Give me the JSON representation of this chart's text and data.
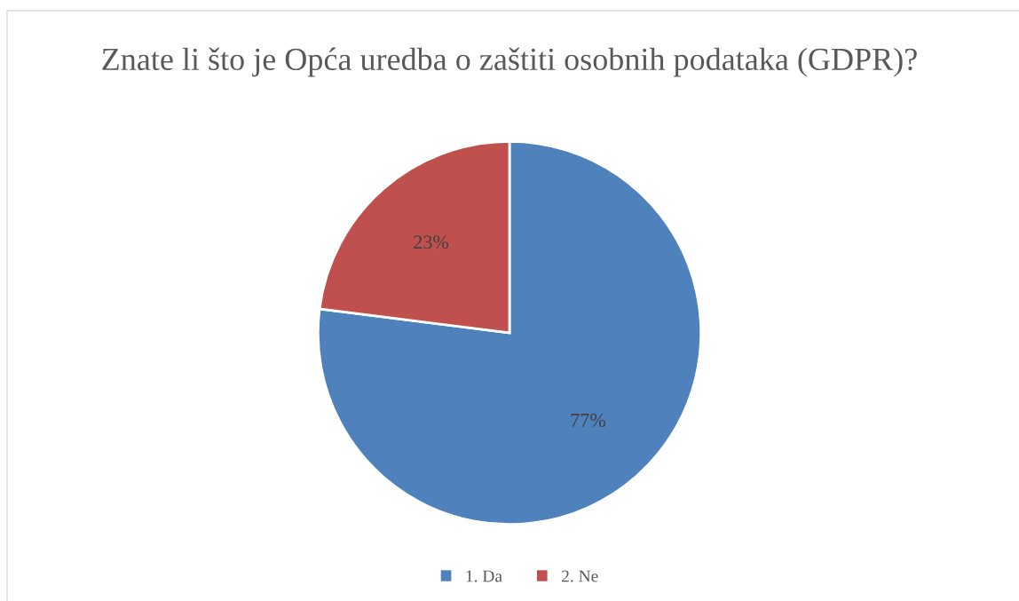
{
  "chart_data": {
    "type": "pie",
    "title": "Znate li što je Opća uredba o zaštiti osobnih podataka (GDPR)?",
    "categories": [
      "1. Da",
      "2. Ne"
    ],
    "values": [
      77,
      23
    ],
    "colors": [
      "#4f81bd",
      "#c0504d"
    ],
    "value_labels": [
      "77%",
      "23%"
    ],
    "legend": "bottom"
  }
}
